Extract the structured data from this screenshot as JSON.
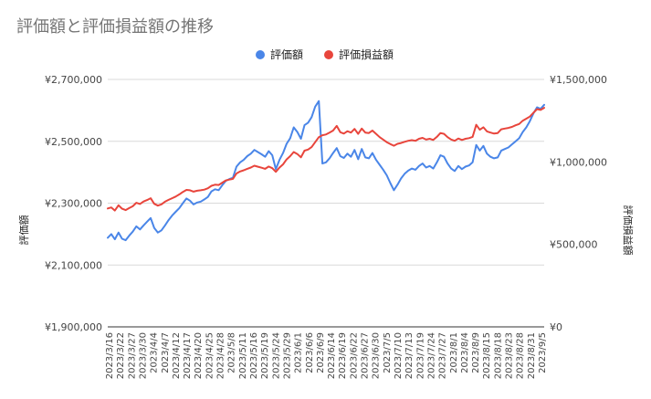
{
  "chart_data": {
    "type": "line",
    "title": "評価額と評価損益額の推移",
    "legend_position": "top",
    "grid": true,
    "left_axis": {
      "label": "評価額",
      "range": [
        1900000,
        2700000
      ],
      "ticks": [
        "¥1,900,000",
        "¥2,100,000",
        "¥2,300,000",
        "¥2,500,000",
        "¥2,700,000"
      ],
      "tick_values": [
        1900000,
        2100000,
        2300000,
        2500000,
        2700000
      ]
    },
    "right_axis": {
      "label": "評価損益額",
      "range": [
        0,
        1500000
      ],
      "ticks": [
        "¥0",
        "¥500,000",
        "¥1,000,000",
        "¥1,500,000"
      ],
      "tick_values": [
        0,
        500000,
        1000000,
        1500000
      ]
    },
    "x_tick_labels": [
      "2023/3/16",
      "2023/3/22",
      "2023/3/27",
      "2023/3/30",
      "2023/4/4",
      "2023/4/7",
      "2023/4/12",
      "2023/4/17",
      "2023/4/20",
      "2023/4/25",
      "2023/4/28",
      "2023/5/8",
      "2023/5/11",
      "2023/5/16",
      "2023/5/19",
      "2023/5/24",
      "2023/5/29",
      "2023/6/1",
      "2023/6/6",
      "2023/6/9",
      "2023/6/14",
      "2023/6/19",
      "2023/6/22",
      "2023/6/27",
      "2023/6/30",
      "2023/7/5",
      "2023/7/10",
      "2023/7/13",
      "2023/7/19",
      "2023/7/24",
      "2023/7/27",
      "2023/8/1",
      "2023/8/4",
      "2023/8/9",
      "2023/8/15",
      "2023/8/18",
      "2023/8/23",
      "2023/8/28",
      "2023/8/31",
      "2023/9/5"
    ],
    "series": [
      {
        "name": "評価額",
        "color": "#4a86e8",
        "axis": "left",
        "values": [
          2188000,
          2200000,
          2183000,
          2205000,
          2185000,
          2180000,
          2195000,
          2208000,
          2225000,
          2215000,
          2228000,
          2240000,
          2252000,
          2220000,
          2205000,
          2212000,
          2228000,
          2245000,
          2260000,
          2272000,
          2284000,
          2300000,
          2315000,
          2308000,
          2296000,
          2302000,
          2305000,
          2312000,
          2320000,
          2338000,
          2345000,
          2342000,
          2358000,
          2372000,
          2378000,
          2382000,
          2418000,
          2432000,
          2440000,
          2452000,
          2460000,
          2472000,
          2465000,
          2458000,
          2450000,
          2468000,
          2455000,
          2410000,
          2440000,
          2462000,
          2492000,
          2510000,
          2545000,
          2530000,
          2508000,
          2552000,
          2560000,
          2578000,
          2612000,
          2630000,
          2428000,
          2432000,
          2445000,
          2462000,
          2478000,
          2452000,
          2446000,
          2460000,
          2450000,
          2472000,
          2442000,
          2475000,
          2448000,
          2445000,
          2462000,
          2440000,
          2424000,
          2408000,
          2390000,
          2365000,
          2342000,
          2360000,
          2380000,
          2395000,
          2405000,
          2412000,
          2408000,
          2420000,
          2428000,
          2415000,
          2420000,
          2412000,
          2432000,
          2455000,
          2450000,
          2428000,
          2412000,
          2404000,
          2420000,
          2410000,
          2418000,
          2422000,
          2432000,
          2488000,
          2470000,
          2485000,
          2460000,
          2450000,
          2445000,
          2448000,
          2470000,
          2475000,
          2480000,
          2490000,
          2500000,
          2510000,
          2530000,
          2545000,
          2565000,
          2590000,
          2610000,
          2605000,
          2618000
        ]
      },
      {
        "name": "評価損益額",
        "color": "#e8453c",
        "axis": "right",
        "values": [
          718000,
          724000,
          705000,
          737000,
          716000,
          708000,
          720000,
          731000,
          752000,
          745000,
          760000,
          769000,
          780000,
          746000,
          735000,
          743000,
          759000,
          770000,
          780000,
          790000,
          803000,
          818000,
          830000,
          828000,
          820000,
          825000,
          828000,
          832000,
          840000,
          855000,
          862000,
          860000,
          874000,
          888000,
          893000,
          897000,
          930000,
          942000,
          949000,
          958000,
          966000,
          977000,
          971000,
          965000,
          958000,
          972000,
          962000,
          940000,
          966000,
          985000,
          1015000,
          1035000,
          1060000,
          1048000,
          1028000,
          1068000,
          1075000,
          1090000,
          1120000,
          1150000,
          1162000,
          1166000,
          1178000,
          1190000,
          1218000,
          1180000,
          1172000,
          1186000,
          1178000,
          1200000,
          1170000,
          1202000,
          1178000,
          1175000,
          1190000,
          1170000,
          1150000,
          1135000,
          1120000,
          1108000,
          1098000,
          1110000,
          1115000,
          1122000,
          1128000,
          1132000,
          1128000,
          1140000,
          1146000,
          1135000,
          1140000,
          1133000,
          1152000,
          1175000,
          1170000,
          1150000,
          1136000,
          1128000,
          1142000,
          1133000,
          1140000,
          1144000,
          1152000,
          1225000,
          1195000,
          1210000,
          1185000,
          1178000,
          1172000,
          1175000,
          1198000,
          1202000,
          1206000,
          1212000,
          1222000,
          1230000,
          1250000,
          1262000,
          1275000,
          1298000,
          1320000,
          1315000,
          1328000
        ]
      }
    ]
  }
}
